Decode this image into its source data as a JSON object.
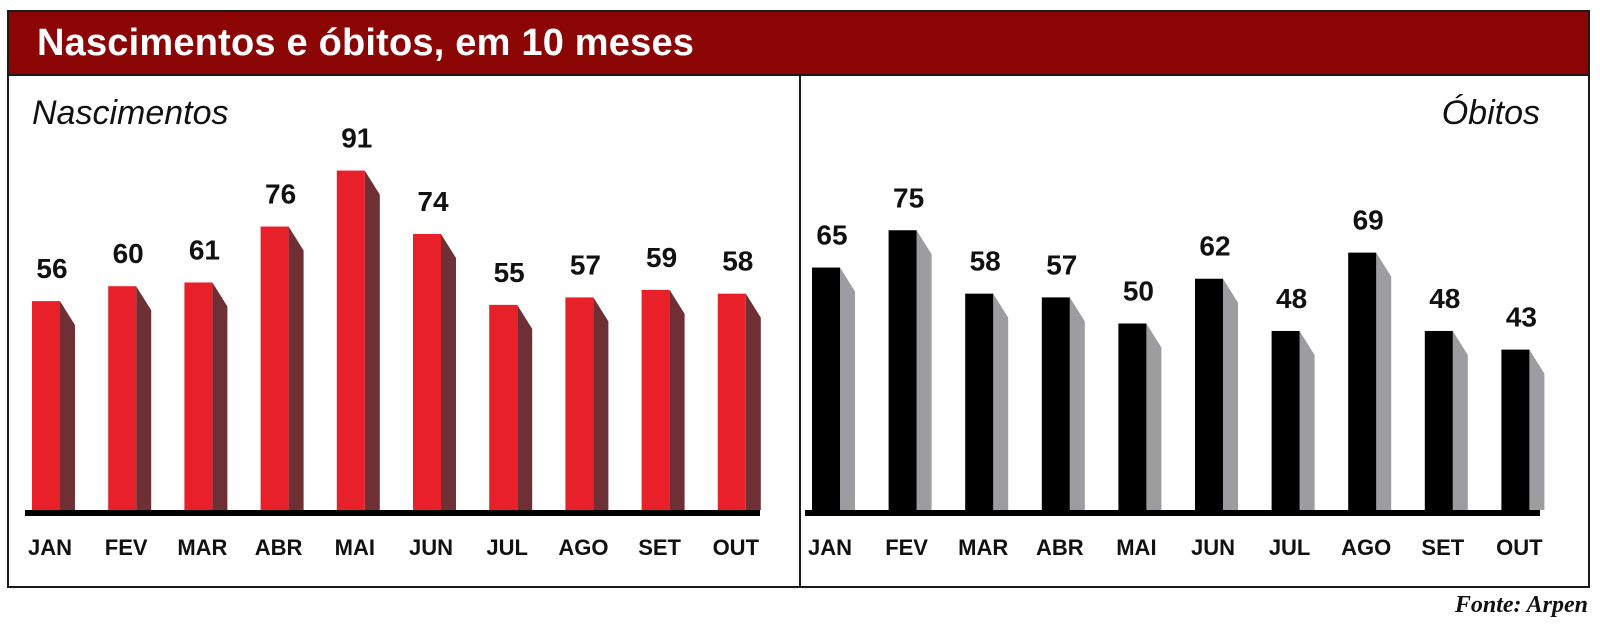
{
  "title": "Nascimentos e óbitos, em 10 meses",
  "source": "Fonte: Arpen",
  "colors": {
    "title_bar": "#8b0505",
    "birth_bar": "#e8202a",
    "birth_bar_side": "#6e3034",
    "death_bar": "#000000",
    "death_bar_side": "#9d9d9f",
    "axis": "#000000"
  },
  "chart_data": [
    {
      "type": "bar",
      "title": "Nascimentos",
      "categories": [
        "JAN",
        "FEV",
        "MAR",
        "ABR",
        "MAI",
        "JUN",
        "JUL",
        "AGO",
        "SET",
        "OUT"
      ],
      "values": [
        56,
        60,
        61,
        76,
        91,
        74,
        55,
        57,
        59,
        58
      ],
      "ylim": [
        0,
        95
      ],
      "grid": false
    },
    {
      "type": "bar",
      "title": "Óbitos",
      "categories": [
        "JAN",
        "FEV",
        "MAR",
        "ABR",
        "MAI",
        "JUN",
        "JUL",
        "AGO",
        "SET",
        "OUT"
      ],
      "values": [
        65,
        75,
        58,
        57,
        50,
        62,
        48,
        69,
        48,
        43
      ],
      "ylim": [
        0,
        95
      ],
      "grid": false
    }
  ]
}
